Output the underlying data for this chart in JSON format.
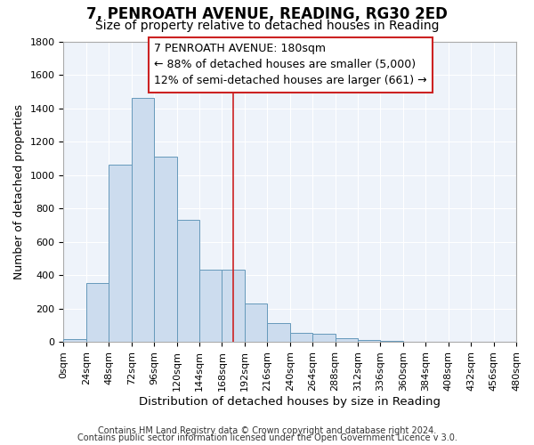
{
  "title1": "7, PENROATH AVENUE, READING, RG30 2ED",
  "title2": "Size of property relative to detached houses in Reading",
  "xlabel": "Distribution of detached houses by size in Reading",
  "ylabel": "Number of detached properties",
  "bar_color": "#ccdcee",
  "bar_edge_color": "#6699bb",
  "background_color": "#ffffff",
  "plot_bg_color": "#eef3fa",
  "grid_color": "#ffffff",
  "vertical_line_x": 180,
  "vertical_line_color": "#cc2222",
  "bin_edges": [
    0,
    24,
    48,
    72,
    96,
    120,
    144,
    168,
    192,
    216,
    240,
    264,
    288,
    312,
    336,
    360,
    384,
    408,
    432,
    456,
    480
  ],
  "bar_heights": [
    15,
    350,
    1060,
    1460,
    1110,
    730,
    430,
    430,
    230,
    110,
    55,
    50,
    20,
    10,
    5,
    0,
    0,
    0,
    0,
    0
  ],
  "annotation_text": "7 PENROATH AVENUE: 180sqm\n← 88% of detached houses are smaller (5,000)\n12% of semi-detached houses are larger (661) →",
  "annotation_box_color": "#ffffff",
  "annotation_box_edge_color": "#cc2222",
  "ylim": [
    0,
    1800
  ],
  "yticks": [
    0,
    200,
    400,
    600,
    800,
    1000,
    1200,
    1400,
    1600,
    1800
  ],
  "footer_text1": "Contains HM Land Registry data © Crown copyright and database right 2024.",
  "footer_text2": "Contains public sector information licensed under the Open Government Licence v 3.0.",
  "title1_fontsize": 12,
  "title2_fontsize": 10,
  "xlabel_fontsize": 9.5,
  "ylabel_fontsize": 9,
  "tick_fontsize": 8,
  "annotation_fontsize": 9,
  "footer_fontsize": 7
}
